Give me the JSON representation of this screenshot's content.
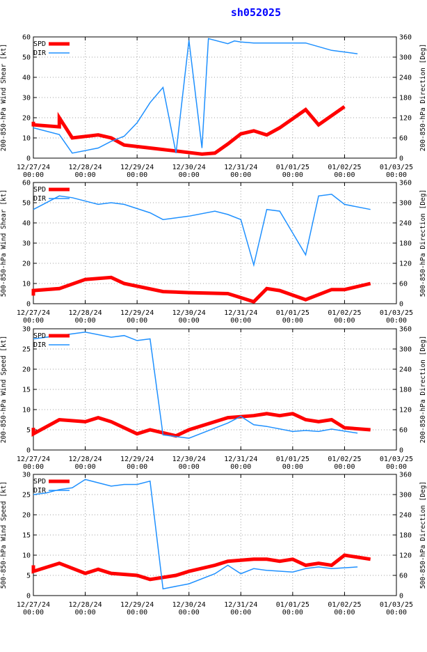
{
  "page_title": "sh052025",
  "colors": {
    "spd": "#ff0000",
    "dir": "#1e90ff",
    "axis": "#000000",
    "grid": "#a0a0a0",
    "title": "#0000ff"
  },
  "x_tick_labels": [
    {
      "date": "12/27/24",
      "time": "00:00"
    },
    {
      "date": "12/28/24",
      "time": "00:00"
    },
    {
      "date": "12/29/24",
      "time": "00:00"
    },
    {
      "date": "12/30/24",
      "time": "00:00"
    },
    {
      "date": "12/31/24",
      "time": "00:00"
    },
    {
      "date": "01/01/25",
      "time": "00:00"
    },
    {
      "date": "01/02/25",
      "time": "00:00"
    },
    {
      "date": "01/03/25",
      "time": "00:00"
    }
  ],
  "chart_data": [
    {
      "type": "line",
      "ylabel": "200-850-hPa Wind Shear [kt]",
      "y2label": "200-850-hPa Direction [Deg]",
      "ylim": [
        0,
        60
      ],
      "yticks": [
        0,
        10,
        20,
        30,
        40,
        50,
        60
      ],
      "y2lim": [
        0,
        360
      ],
      "y2ticks": [
        0,
        60,
        120,
        180,
        240,
        300,
        360
      ],
      "xlim": [
        0,
        168
      ],
      "x_unit": "hours since 12/27/24 00:00",
      "legend": [
        "SPD",
        "DIR"
      ],
      "series": [
        {
          "name": "SPD",
          "axis": "left",
          "x": [
            0,
            0,
            12,
            12,
            18,
            30,
            36,
            42,
            54,
            66,
            78,
            84,
            90,
            96,
            102,
            108,
            114,
            126,
            132,
            144
          ],
          "values": [
            18,
            16.5,
            15.5,
            20,
            10,
            11.5,
            10,
            6.5,
            5,
            3.5,
            2,
            2.5,
            7,
            12,
            13.5,
            11.5,
            15,
            24,
            16.5,
            25.5
          ]
        },
        {
          "name": "DIR",
          "axis": "right",
          "x": [
            0,
            12,
            18,
            30,
            36,
            42,
            48,
            54,
            60,
            66,
            72,
            78,
            81,
            90,
            93,
            96,
            102,
            126,
            138,
            150
          ],
          "values": [
            90,
            70,
            15,
            30,
            50,
            65,
            105,
            165,
            210,
            15,
            350,
            30,
            355,
            340,
            348,
            345,
            342,
            342,
            320,
            310
          ]
        }
      ]
    },
    {
      "type": "line",
      "ylabel": "500-850-hPa Wind Shear [kt]",
      "y2label": "500-850-hPa Direction [Deg]",
      "ylim": [
        0,
        60
      ],
      "yticks": [
        0,
        10,
        20,
        30,
        40,
        50,
        60
      ],
      "y2lim": [
        0,
        360
      ],
      "y2ticks": [
        0,
        60,
        120,
        180,
        240,
        300,
        360
      ],
      "xlim": [
        0,
        168
      ],
      "x_unit": "hours since 12/27/24 00:00",
      "legend": [
        "SPD",
        "DIR"
      ],
      "series": [
        {
          "name": "SPD",
          "axis": "left",
          "x": [
            0,
            0,
            12,
            24,
            36,
            42,
            60,
            72,
            90,
            93,
            102,
            108,
            114,
            126,
            138,
            144,
            156
          ],
          "values": [
            4,
            6.5,
            7.5,
            12,
            13,
            10,
            6,
            5.5,
            5,
            4,
            1,
            7.5,
            6.5,
            2,
            7,
            7,
            10
          ]
        },
        {
          "name": "DIR",
          "axis": "right",
          "x": [
            0,
            12,
            18,
            30,
            36,
            42,
            54,
            60,
            66,
            72,
            84,
            90,
            96,
            102,
            108,
            114,
            120,
            126,
            132,
            138,
            144,
            156
          ],
          "values": [
            280,
            320,
            315,
            295,
            300,
            295,
            270,
            250,
            255,
            260,
            275,
            265,
            250,
            115,
            280,
            275,
            210,
            145,
            320,
            325,
            295,
            280
          ]
        }
      ]
    },
    {
      "type": "line",
      "ylabel": "200-850-hPa Wind Speed [kt]",
      "y2label": "200-850-hPa Direction [Deg]",
      "ylim": [
        0,
        30
      ],
      "yticks": [
        0,
        5,
        10,
        15,
        20,
        25,
        30
      ],
      "y2lim": [
        0,
        360
      ],
      "y2ticks": [
        0,
        60,
        120,
        180,
        240,
        300,
        360
      ],
      "xlim": [
        0,
        168
      ],
      "x_unit": "hours since 12/27/24 00:00",
      "legend": [
        "SPD",
        "DIR"
      ],
      "series": [
        {
          "name": "SPD",
          "axis": "left",
          "x": [
            0,
            0,
            12,
            24,
            30,
            36,
            48,
            54,
            66,
            72,
            84,
            90,
            102,
            108,
            114,
            120,
            126,
            132,
            138,
            144,
            156
          ],
          "values": [
            5.5,
            4,
            7.5,
            7,
            8,
            7,
            4,
            5,
            3.5,
            5,
            7,
            8,
            8.5,
            9,
            8.5,
            9,
            7.5,
            7,
            7.5,
            5.5,
            5
          ]
        },
        {
          "name": "DIR",
          "axis": "right",
          "x": [
            0,
            6,
            12,
            18,
            24,
            36,
            42,
            48,
            54,
            60,
            72,
            84,
            90,
            96,
            102,
            108,
            120,
            126,
            132,
            138,
            150
          ],
          "values": [
            330,
            335,
            340,
            345,
            350,
            335,
            340,
            325,
            330,
            45,
            35,
            65,
            80,
            100,
            75,
            70,
            55,
            58,
            55,
            62,
            50
          ]
        }
      ]
    },
    {
      "type": "line",
      "ylabel": "500-850-hPa Wind Speed [kt]",
      "y2label": "500-850-hPa Direction [Deg]",
      "ylim": [
        0,
        30
      ],
      "yticks": [
        0,
        5,
        10,
        15,
        20,
        25,
        30
      ],
      "y2lim": [
        0,
        360
      ],
      "y2ticks": [
        0,
        60,
        120,
        180,
        240,
        300,
        360
      ],
      "xlim": [
        0,
        168
      ],
      "x_unit": "hours since 12/27/24 00:00",
      "legend": [
        "SPD",
        "DIR"
      ],
      "series": [
        {
          "name": "SPD",
          "axis": "left",
          "x": [
            0,
            0,
            12,
            24,
            30,
            36,
            48,
            54,
            66,
            72,
            84,
            90,
            102,
            108,
            114,
            120,
            126,
            132,
            138,
            144,
            156
          ],
          "values": [
            7.5,
            6,
            8,
            5.5,
            6.5,
            5.5,
            5,
            4,
            5,
            6,
            7.5,
            8.5,
            9,
            9,
            8.5,
            9,
            7.5,
            8,
            7.5,
            10,
            9
          ]
        },
        {
          "name": "DIR",
          "axis": "right",
          "x": [
            0,
            6,
            12,
            18,
            24,
            36,
            42,
            48,
            54,
            60,
            72,
            84,
            90,
            96,
            102,
            108,
            120,
            126,
            132,
            138,
            150
          ],
          "values": [
            300,
            305,
            315,
            320,
            345,
            325,
            330,
            330,
            340,
            20,
            35,
            65,
            90,
            65,
            80,
            75,
            70,
            80,
            85,
            80,
            85
          ]
        }
      ]
    }
  ]
}
